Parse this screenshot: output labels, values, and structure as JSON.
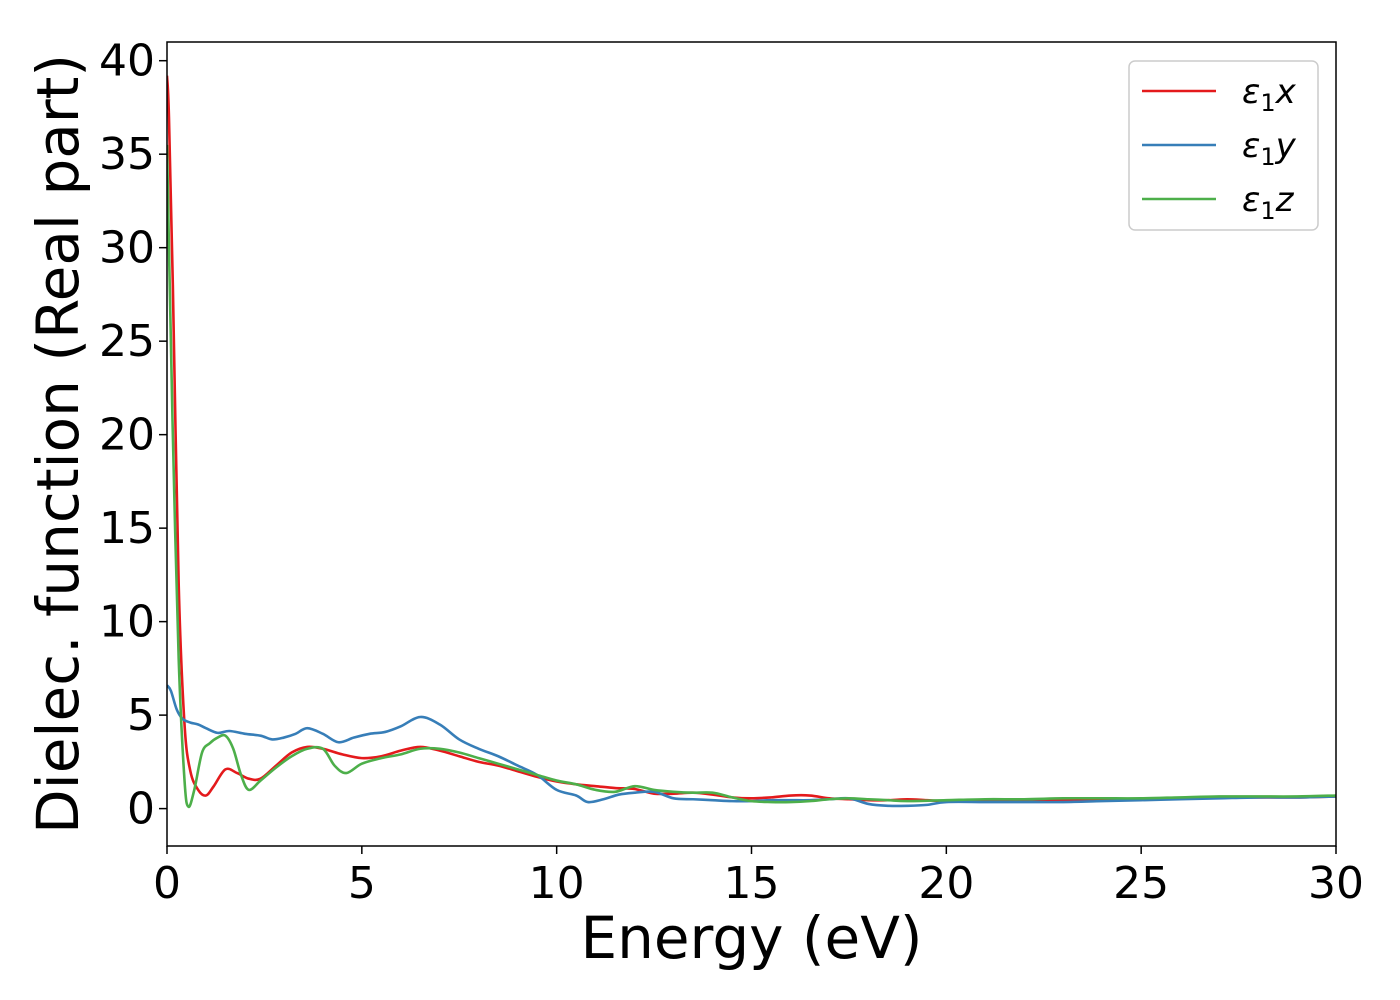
{
  "chart_data": {
    "type": "line",
    "title": "",
    "xlabel": "Energy (eV)",
    "ylabel": "Dielec. function (Real part)",
    "xlim": [
      0,
      30
    ],
    "ylim": [
      -2,
      41
    ],
    "xticks": [
      0,
      5,
      10,
      15,
      20,
      25,
      30
    ],
    "yticks": [
      0,
      5,
      10,
      15,
      20,
      25,
      30,
      35,
      40
    ],
    "grid": false,
    "legend_position": "top-right",
    "series": [
      {
        "name": "ε₁x",
        "legend_base": "ε",
        "legend_sub": "1",
        "legend_suffix": "x",
        "color": "#e41a1c",
        "x": [
          0,
          0.05,
          0.15,
          0.3,
          0.45,
          0.6,
          0.8,
          1.0,
          1.2,
          1.5,
          1.8,
          2.1,
          2.4,
          2.8,
          3.2,
          3.6,
          4.0,
          4.5,
          5.0,
          5.5,
          6.0,
          6.5,
          7.0,
          7.5,
          8.0,
          8.5,
          9.0,
          9.5,
          10.0,
          10.5,
          11.0,
          11.5,
          12.0,
          12.5,
          13.0,
          13.5,
          14.0,
          14.5,
          15.0,
          15.5,
          16.0,
          16.5,
          17.0,
          17.5,
          18.0,
          18.5,
          19.0,
          19.5,
          20.0,
          21.0,
          22.0,
          23.0,
          24.0,
          25.0,
          26.0,
          27.0,
          28.0,
          29.0,
          30.0
        ],
        "y": [
          39.2,
          37.0,
          28.0,
          12.0,
          4.5,
          2.0,
          1.0,
          0.7,
          1.2,
          2.1,
          1.9,
          1.6,
          1.6,
          2.3,
          3.0,
          3.3,
          3.2,
          2.9,
          2.7,
          2.8,
          3.1,
          3.3,
          3.1,
          2.8,
          2.5,
          2.3,
          2.0,
          1.7,
          1.45,
          1.3,
          1.2,
          1.1,
          1.05,
          0.8,
          0.8,
          0.85,
          0.75,
          0.6,
          0.55,
          0.6,
          0.7,
          0.7,
          0.55,
          0.5,
          0.45,
          0.45,
          0.5,
          0.45,
          0.4,
          0.45,
          0.45,
          0.45,
          0.45,
          0.5,
          0.55,
          0.6,
          0.6,
          0.6,
          0.65
        ]
      },
      {
        "name": "ε₁y",
        "legend_base": "ε",
        "legend_sub": "1",
        "legend_suffix": "y",
        "color": "#377eb8",
        "x": [
          0,
          0.1,
          0.25,
          0.4,
          0.6,
          0.8,
          1.0,
          1.3,
          1.6,
          2.0,
          2.4,
          2.7,
          3.0,
          3.3,
          3.6,
          4.0,
          4.4,
          4.8,
          5.2,
          5.6,
          6.0,
          6.5,
          7.0,
          7.5,
          8.0,
          8.5,
          9.0,
          9.5,
          10.0,
          10.5,
          10.8,
          11.2,
          11.6,
          12.0,
          12.5,
          13.0,
          13.5,
          14.0,
          14.5,
          15.0,
          15.5,
          16.0,
          16.5,
          17.0,
          17.5,
          18.0,
          18.5,
          19.0,
          19.5,
          20.0,
          21.0,
          22.0,
          23.0,
          24.0,
          25.0,
          26.0,
          27.0,
          28.0,
          29.0,
          30.0
        ],
        "y": [
          6.6,
          6.3,
          5.3,
          4.8,
          4.6,
          4.5,
          4.3,
          4.05,
          4.15,
          4.0,
          3.9,
          3.7,
          3.8,
          4.0,
          4.3,
          4.0,
          3.55,
          3.8,
          4.0,
          4.1,
          4.4,
          4.9,
          4.5,
          3.7,
          3.2,
          2.8,
          2.3,
          1.8,
          1.0,
          0.7,
          0.35,
          0.5,
          0.75,
          0.85,
          0.9,
          0.55,
          0.5,
          0.45,
          0.4,
          0.4,
          0.45,
          0.45,
          0.45,
          0.5,
          0.55,
          0.25,
          0.15,
          0.15,
          0.2,
          0.35,
          0.35,
          0.35,
          0.35,
          0.4,
          0.45,
          0.5,
          0.55,
          0.6,
          0.6,
          0.65
        ]
      },
      {
        "name": "ε₁z",
        "legend_base": "ε",
        "legend_sub": "1",
        "legend_suffix": "z",
        "color": "#4daf4a",
        "x": [
          0,
          0.05,
          0.15,
          0.3,
          0.45,
          0.55,
          0.7,
          0.9,
          1.1,
          1.3,
          1.5,
          1.7,
          1.9,
          2.1,
          2.4,
          2.8,
          3.2,
          3.6,
          4.0,
          4.3,
          4.6,
          5.0,
          5.5,
          6.0,
          6.5,
          7.0,
          7.5,
          8.0,
          8.5,
          9.0,
          9.5,
          10.0,
          10.5,
          11.0,
          11.5,
          12.0,
          12.5,
          13.0,
          13.5,
          14.0,
          14.5,
          15.0,
          15.5,
          16.0,
          16.5,
          17.0,
          17.5,
          18.0,
          18.5,
          19.0,
          20.0,
          21.0,
          22.0,
          23.0,
          24.0,
          25.0,
          26.0,
          27.0,
          28.0,
          29.0,
          30.0
        ],
        "y": [
          35.5,
          30.0,
          20.0,
          8.0,
          1.5,
          0.1,
          1.0,
          3.0,
          3.5,
          3.8,
          3.9,
          3.2,
          1.8,
          1.0,
          1.5,
          2.2,
          2.8,
          3.2,
          3.2,
          2.3,
          1.9,
          2.4,
          2.7,
          2.9,
          3.2,
          3.2,
          3.0,
          2.7,
          2.4,
          2.1,
          1.8,
          1.5,
          1.3,
          1.0,
          0.9,
          1.2,
          1.0,
          0.9,
          0.85,
          0.85,
          0.6,
          0.4,
          0.35,
          0.35,
          0.4,
          0.5,
          0.55,
          0.5,
          0.45,
          0.4,
          0.45,
          0.5,
          0.5,
          0.55,
          0.55,
          0.55,
          0.6,
          0.65,
          0.65,
          0.65,
          0.7
        ]
      }
    ]
  }
}
